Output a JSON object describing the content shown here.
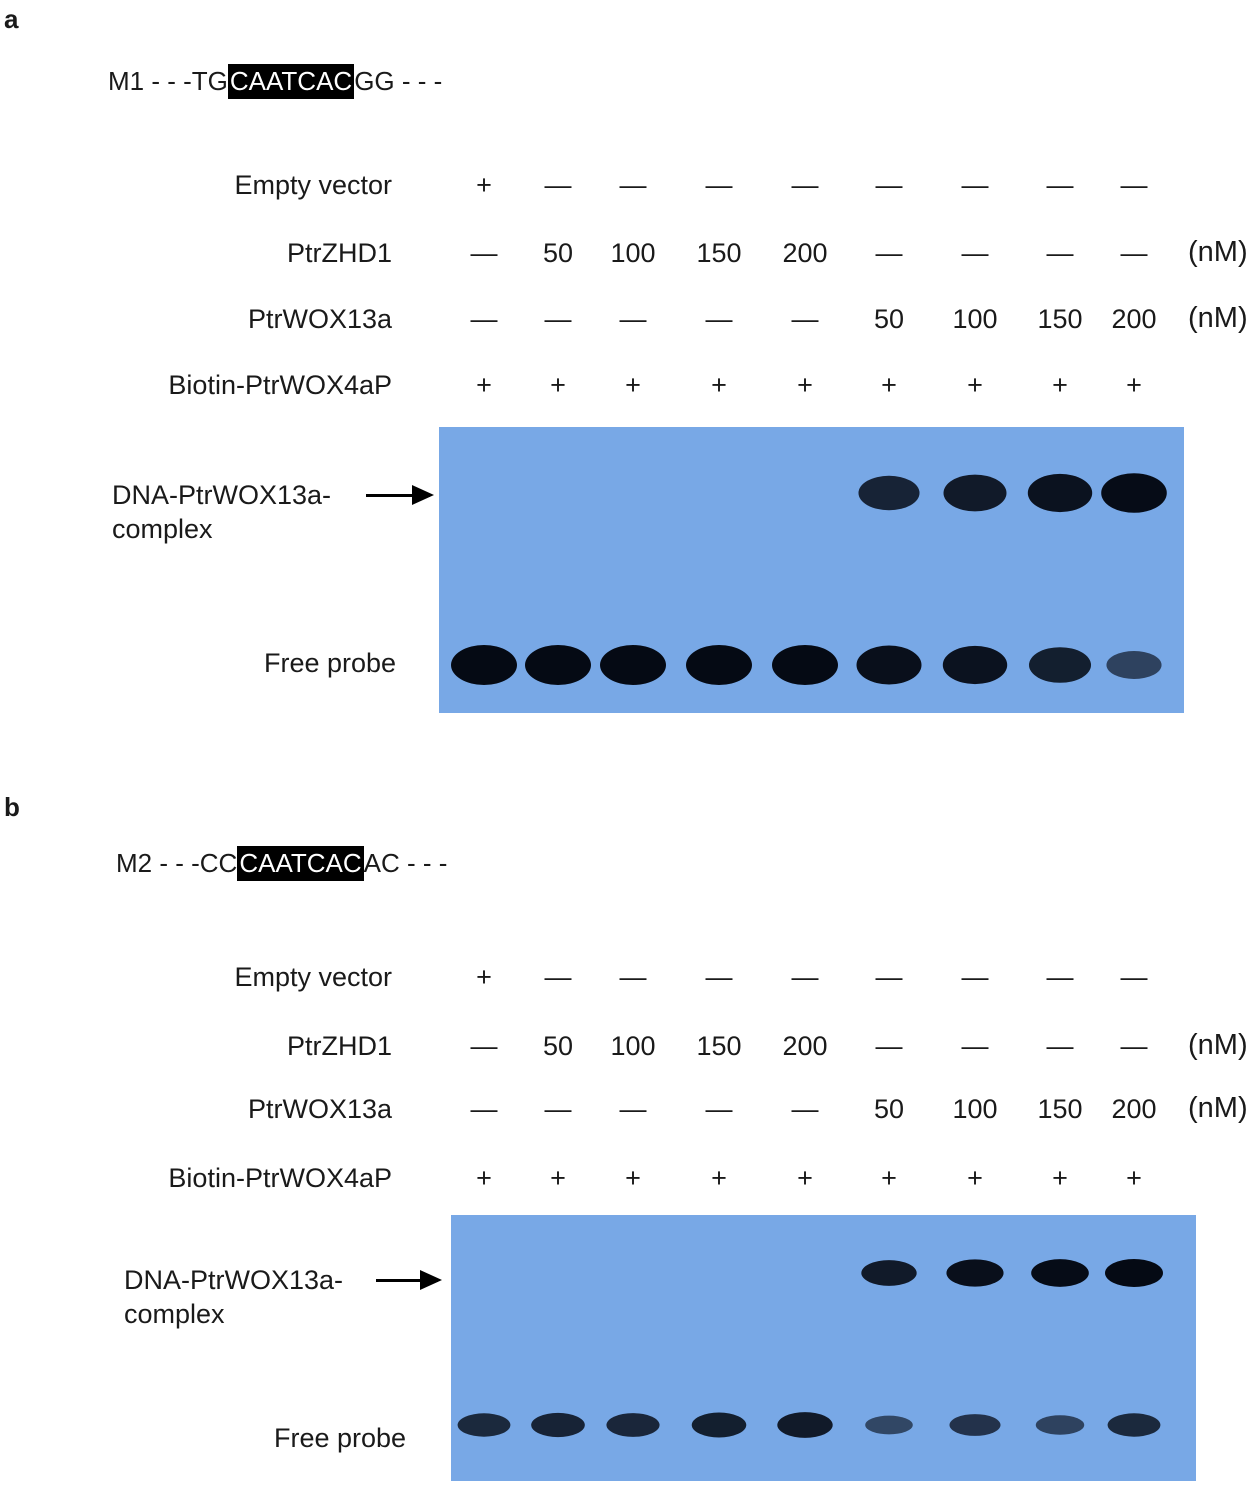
{
  "panels": [
    {
      "letter": "a",
      "seq": {
        "name": "M1",
        "left": " - - -TG",
        "highlight": "CAATCAC",
        "right": "GG - - -"
      },
      "rows": [
        {
          "label": "Empty vector",
          "cells": [
            "+",
            "—",
            "—",
            "—",
            "—",
            "—",
            "—",
            "—",
            "—"
          ],
          "unit": ""
        },
        {
          "label": "PtrZHD1",
          "cells": [
            "—",
            "50",
            "100",
            "150",
            "200",
            "—",
            "—",
            "—",
            "—"
          ],
          "unit": "(nM)"
        },
        {
          "label": "PtrWOX13a",
          "cells": [
            "—",
            "—",
            "—",
            "—",
            "—",
            "50",
            "100",
            "150",
            "200"
          ],
          "unit": "(nM)"
        },
        {
          "label": "Biotin-PtrWOX4aP",
          "cells": [
            "+",
            "+",
            "+",
            "+",
            "+",
            "+",
            "+",
            "+",
            "+"
          ],
          "unit": ""
        }
      ],
      "complex_label_1": "DNA-PtrWOX13a-",
      "complex_label_2": "complex",
      "free_probe_label": "Free probe",
      "complex_band_intensity": [
        0,
        0,
        0,
        0,
        0,
        0.75,
        0.85,
        0.92,
        0.98
      ],
      "free_band_intensity": [
        1,
        1,
        1,
        1,
        1,
        0.95,
        0.92,
        0.8,
        0.45
      ]
    },
    {
      "letter": "b",
      "seq": {
        "name": "M2",
        "left": " - - -CC",
        "highlight": "CAATCAC",
        "right": "AC - - -"
      },
      "rows": [
        {
          "label": "Empty vector",
          "cells": [
            "+",
            "—",
            "—",
            "—",
            "—",
            "—",
            "—",
            "—",
            "—"
          ],
          "unit": ""
        },
        {
          "label": "PtrZHD1",
          "cells": [
            "—",
            "50",
            "100",
            "150",
            "200",
            "—",
            "—",
            "—",
            "—"
          ],
          "unit": "(nM)"
        },
        {
          "label": "PtrWOX13a",
          "cells": [
            "—",
            "—",
            "—",
            "—",
            "—",
            "50",
            "100",
            "150",
            "200"
          ],
          "unit": "(nM)"
        },
        {
          "label": "Biotin-PtrWOX4aP",
          "cells": [
            "+",
            "+",
            "+",
            "+",
            "+",
            "+",
            "+",
            "+",
            "+"
          ],
          "unit": ""
        }
      ],
      "complex_label_1": "DNA-PtrWOX13a-",
      "complex_label_2": "complex",
      "free_probe_label": "Free probe",
      "complex_band_intensity": [
        0,
        0,
        0,
        0,
        0,
        0.85,
        0.95,
        0.98,
        1
      ],
      "free_band_intensity": [
        0.7,
        0.75,
        0.72,
        0.8,
        0.85,
        0.4,
        0.6,
        0.45,
        0.7
      ]
    }
  ],
  "colors": {
    "gel": "#78a8e6",
    "band": "#050a14"
  }
}
